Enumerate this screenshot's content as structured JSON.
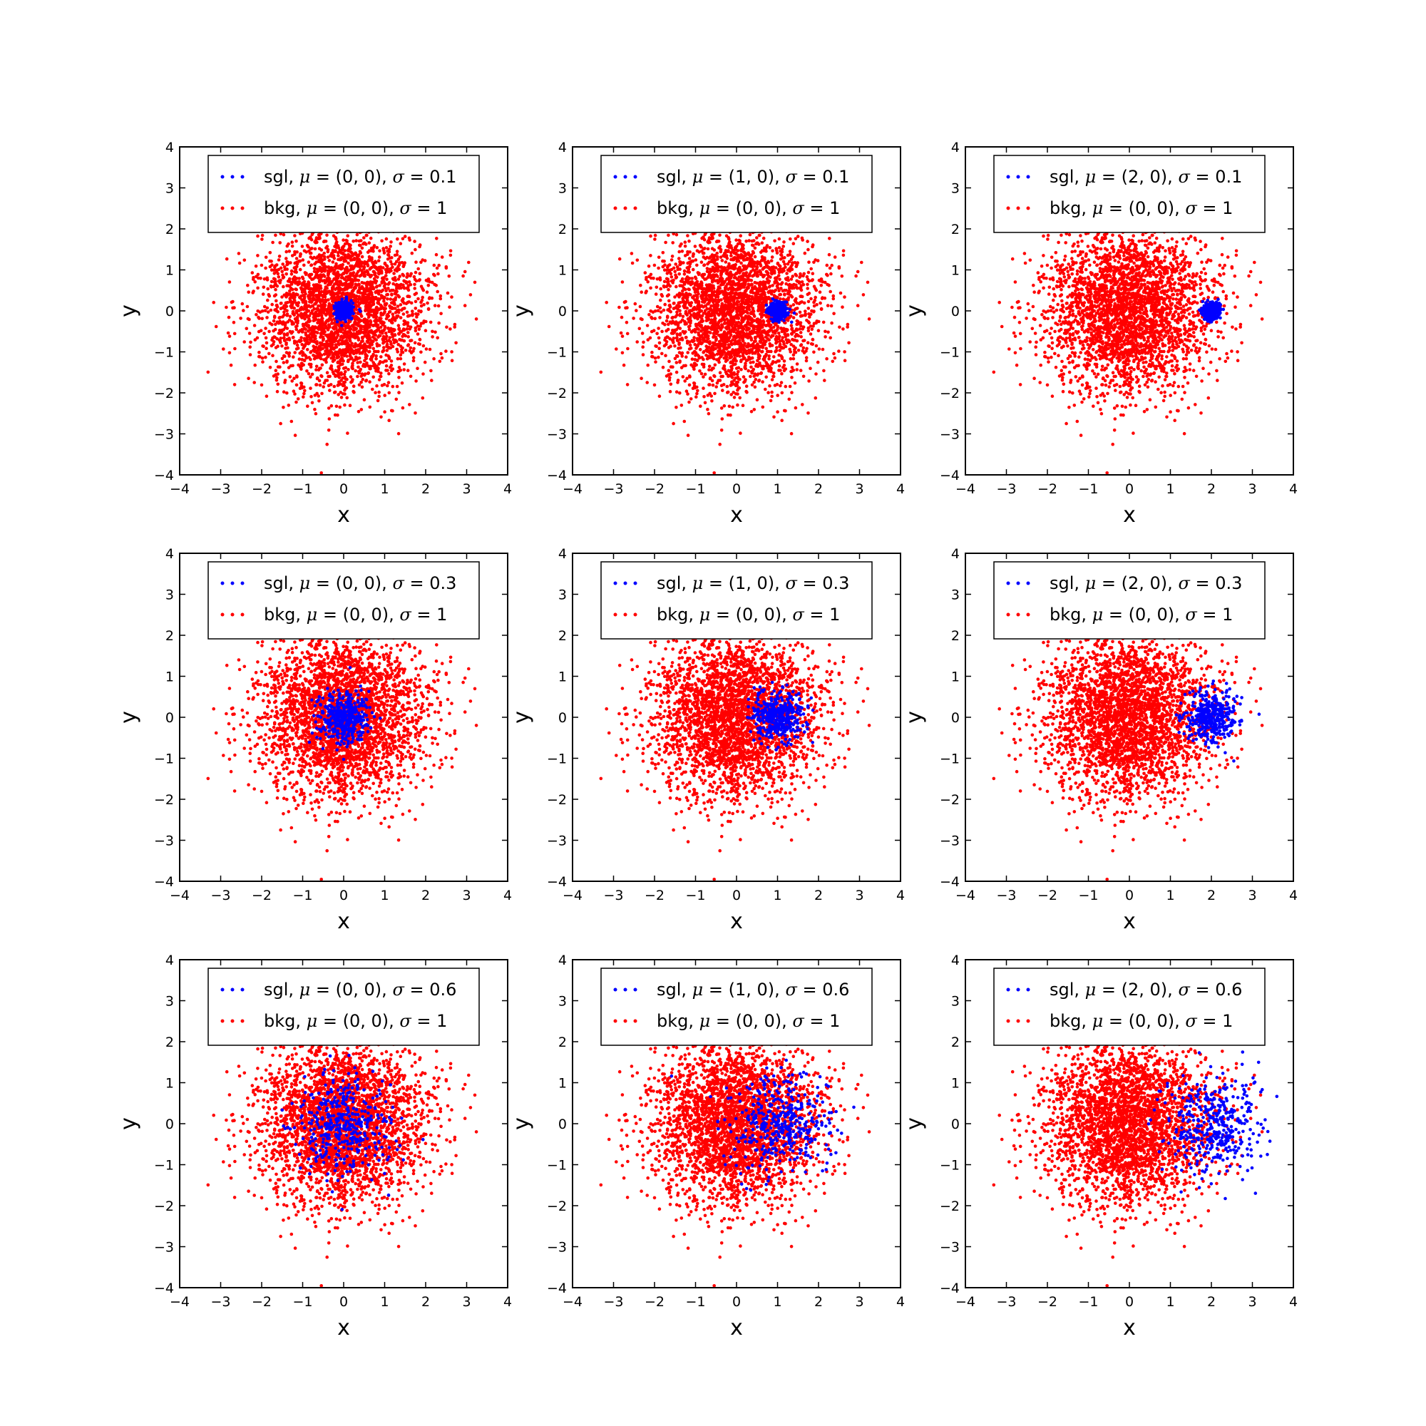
{
  "figure": {
    "title": "",
    "colors": {
      "signal": "#0000ff",
      "background": "#ff0000"
    }
  },
  "chart_data": [
    {
      "type": "scatter",
      "title": "",
      "xlabel": "x",
      "ylabel": "y",
      "xlim": [
        -4,
        4
      ],
      "ylim": [
        -4,
        4
      ],
      "xticks": [
        "−4",
        "−3",
        "−2",
        "−1",
        "0",
        "1",
        "2",
        "3",
        "4"
      ],
      "yticks": [
        "−4",
        "−3",
        "−2",
        "−1",
        "0",
        "1",
        "2",
        "3",
        "4"
      ],
      "grid": false,
      "legend_position": "upper center",
      "series": [
        {
          "name": "sgl",
          "mu_text": "(0, 0)",
          "sigma_text": "0.1",
          "mu": [
            0,
            0
          ],
          "sigma": 0.1,
          "n_points": 400,
          "color": "#0000ff"
        },
        {
          "name": "bkg",
          "mu_text": "(0, 0)",
          "sigma_text": "1",
          "mu": [
            0,
            0
          ],
          "sigma": 1,
          "n_points": 3000,
          "color": "#ff0000"
        }
      ]
    },
    {
      "type": "scatter",
      "title": "",
      "xlabel": "x",
      "ylabel": "y",
      "xlim": [
        -4,
        4
      ],
      "ylim": [
        -4,
        4
      ],
      "xticks": [
        "−4",
        "−3",
        "−2",
        "−1",
        "0",
        "1",
        "2",
        "3",
        "4"
      ],
      "yticks": [
        "−4",
        "−3",
        "−2",
        "−1",
        "0",
        "1",
        "2",
        "3",
        "4"
      ],
      "grid": false,
      "legend_position": "upper center",
      "series": [
        {
          "name": "sgl",
          "mu_text": "(1, 0)",
          "sigma_text": "0.1",
          "mu": [
            1,
            0
          ],
          "sigma": 0.1,
          "n_points": 400,
          "color": "#0000ff"
        },
        {
          "name": "bkg",
          "mu_text": "(0, 0)",
          "sigma_text": "1",
          "mu": [
            0,
            0
          ],
          "sigma": 1,
          "n_points": 3000,
          "color": "#ff0000"
        }
      ]
    },
    {
      "type": "scatter",
      "title": "",
      "xlabel": "x",
      "ylabel": "y",
      "xlim": [
        -4,
        4
      ],
      "ylim": [
        -4,
        4
      ],
      "xticks": [
        "−4",
        "−3",
        "−2",
        "−1",
        "0",
        "1",
        "2",
        "3",
        "4"
      ],
      "yticks": [
        "−4",
        "−3",
        "−2",
        "−1",
        "0",
        "1",
        "2",
        "3",
        "4"
      ],
      "grid": false,
      "legend_position": "upper center",
      "series": [
        {
          "name": "sgl",
          "mu_text": "(2, 0)",
          "sigma_text": "0.1",
          "mu": [
            2,
            0
          ],
          "sigma": 0.1,
          "n_points": 400,
          "color": "#0000ff"
        },
        {
          "name": "bkg",
          "mu_text": "(0, 0)",
          "sigma_text": "1",
          "mu": [
            0,
            0
          ],
          "sigma": 1,
          "n_points": 3000,
          "color": "#ff0000"
        }
      ]
    },
    {
      "type": "scatter",
      "title": "",
      "xlabel": "x",
      "ylabel": "y",
      "xlim": [
        -4,
        4
      ],
      "ylim": [
        -4,
        4
      ],
      "xticks": [
        "−4",
        "−3",
        "−2",
        "−1",
        "0",
        "1",
        "2",
        "3",
        "4"
      ],
      "yticks": [
        "−4",
        "−3",
        "−2",
        "−1",
        "0",
        "1",
        "2",
        "3",
        "4"
      ],
      "grid": false,
      "legend_position": "upper center",
      "series": [
        {
          "name": "sgl",
          "mu_text": "(0, 0)",
          "sigma_text": "0.3",
          "mu": [
            0,
            0
          ],
          "sigma": 0.3,
          "n_points": 400,
          "color": "#0000ff"
        },
        {
          "name": "bkg",
          "mu_text": "(0, 0)",
          "sigma_text": "1",
          "mu": [
            0,
            0
          ],
          "sigma": 1,
          "n_points": 3000,
          "color": "#ff0000"
        }
      ]
    },
    {
      "type": "scatter",
      "title": "",
      "xlabel": "x",
      "ylabel": "y",
      "xlim": [
        -4,
        4
      ],
      "ylim": [
        -4,
        4
      ],
      "xticks": [
        "−4",
        "−3",
        "−2",
        "−1",
        "0",
        "1",
        "2",
        "3",
        "4"
      ],
      "yticks": [
        "−4",
        "−3",
        "−2",
        "−1",
        "0",
        "1",
        "2",
        "3",
        "4"
      ],
      "grid": false,
      "legend_position": "upper center",
      "series": [
        {
          "name": "sgl",
          "mu_text": "(1, 0)",
          "sigma_text": "0.3",
          "mu": [
            1,
            0
          ],
          "sigma": 0.3,
          "n_points": 400,
          "color": "#0000ff"
        },
        {
          "name": "bkg",
          "mu_text": "(0, 0)",
          "sigma_text": "1",
          "mu": [
            0,
            0
          ],
          "sigma": 1,
          "n_points": 3000,
          "color": "#ff0000"
        }
      ]
    },
    {
      "type": "scatter",
      "title": "",
      "xlabel": "x",
      "ylabel": "y",
      "xlim": [
        -4,
        4
      ],
      "ylim": [
        -4,
        4
      ],
      "xticks": [
        "−4",
        "−3",
        "−2",
        "−1",
        "0",
        "1",
        "2",
        "3",
        "4"
      ],
      "yticks": [
        "−4",
        "−3",
        "−2",
        "−1",
        "0",
        "1",
        "2",
        "3",
        "4"
      ],
      "grid": false,
      "legend_position": "upper center",
      "series": [
        {
          "name": "sgl",
          "mu_text": "(2, 0)",
          "sigma_text": "0.3",
          "mu": [
            2,
            0
          ],
          "sigma": 0.3,
          "n_points": 400,
          "color": "#0000ff"
        },
        {
          "name": "bkg",
          "mu_text": "(0, 0)",
          "sigma_text": "1",
          "mu": [
            0,
            0
          ],
          "sigma": 1,
          "n_points": 3000,
          "color": "#ff0000"
        }
      ]
    },
    {
      "type": "scatter",
      "title": "",
      "xlabel": "x",
      "ylabel": "y",
      "xlim": [
        -4,
        4
      ],
      "ylim": [
        -4,
        4
      ],
      "xticks": [
        "−4",
        "−3",
        "−2",
        "−1",
        "0",
        "1",
        "2",
        "3",
        "4"
      ],
      "yticks": [
        "−4",
        "−3",
        "−2",
        "−1",
        "0",
        "1",
        "2",
        "3",
        "4"
      ],
      "grid": false,
      "legend_position": "upper center",
      "series": [
        {
          "name": "sgl",
          "mu_text": "(0, 0)",
          "sigma_text": "0.6",
          "mu": [
            0,
            0
          ],
          "sigma": 0.6,
          "n_points": 400,
          "color": "#0000ff"
        },
        {
          "name": "bkg",
          "mu_text": "(0, 0)",
          "sigma_text": "1",
          "mu": [
            0,
            0
          ],
          "sigma": 1,
          "n_points": 3000,
          "color": "#ff0000"
        }
      ]
    },
    {
      "type": "scatter",
      "title": "",
      "xlabel": "x",
      "ylabel": "y",
      "xlim": [
        -4,
        4
      ],
      "ylim": [
        -4,
        4
      ],
      "xticks": [
        "−4",
        "−3",
        "−2",
        "−1",
        "0",
        "1",
        "2",
        "3",
        "4"
      ],
      "yticks": [
        "−4",
        "−3",
        "−2",
        "−1",
        "0",
        "1",
        "2",
        "3",
        "4"
      ],
      "grid": false,
      "legend_position": "upper center",
      "series": [
        {
          "name": "sgl",
          "mu_text": "(1, 0)",
          "sigma_text": "0.6",
          "mu": [
            1,
            0
          ],
          "sigma": 0.6,
          "n_points": 400,
          "color": "#0000ff"
        },
        {
          "name": "bkg",
          "mu_text": "(0, 0)",
          "sigma_text": "1",
          "mu": [
            0,
            0
          ],
          "sigma": 1,
          "n_points": 3000,
          "color": "#ff0000"
        }
      ]
    },
    {
      "type": "scatter",
      "title": "",
      "xlabel": "x",
      "ylabel": "y",
      "xlim": [
        -4,
        4
      ],
      "ylim": [
        -4,
        4
      ],
      "xticks": [
        "−4",
        "−3",
        "−2",
        "−1",
        "0",
        "1",
        "2",
        "3",
        "4"
      ],
      "yticks": [
        "−4",
        "−3",
        "−2",
        "−1",
        "0",
        "1",
        "2",
        "3",
        "4"
      ],
      "grid": false,
      "legend_position": "upper center",
      "series": [
        {
          "name": "sgl",
          "mu_text": "(2, 0)",
          "sigma_text": "0.6",
          "mu": [
            2,
            0
          ],
          "sigma": 0.6,
          "n_points": 400,
          "color": "#0000ff"
        },
        {
          "name": "bkg",
          "mu_text": "(0, 0)",
          "sigma_text": "1",
          "mu": [
            0,
            0
          ],
          "sigma": 1,
          "n_points": 3000,
          "color": "#ff0000"
        }
      ]
    }
  ]
}
